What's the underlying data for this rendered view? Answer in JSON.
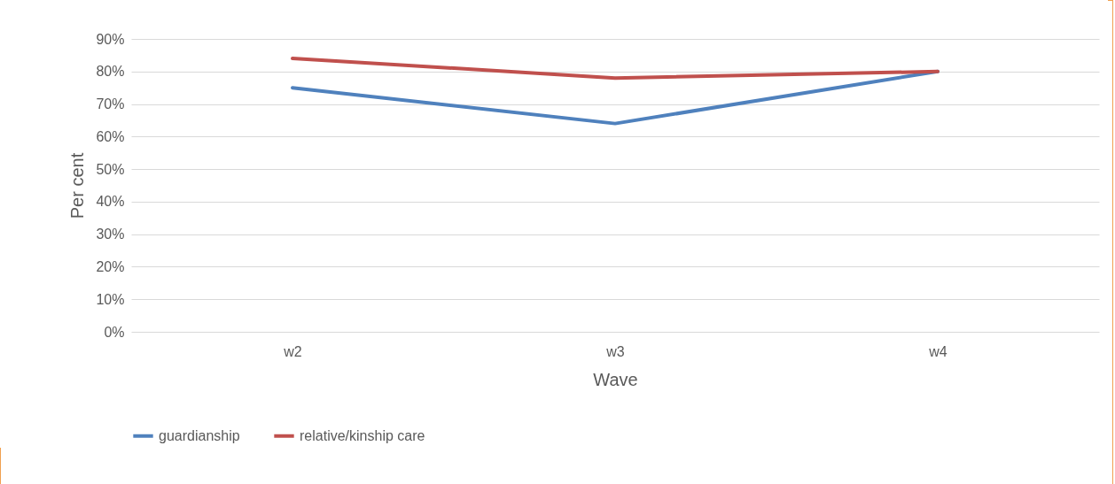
{
  "chart_data": {
    "type": "line",
    "xlabel": "Wave",
    "ylabel": "Per cent",
    "categories": [
      "w2",
      "w3",
      "w4"
    ],
    "series": [
      {
        "name": "guardianship",
        "color": "#4f81bd",
        "values": [
          75,
          64,
          80
        ]
      },
      {
        "name": "relative/kinship care",
        "color": "#c0504d",
        "values": [
          84,
          78,
          80
        ]
      }
    ],
    "ylim": [
      0,
      90
    ],
    "yticks": [
      {
        "value": 0,
        "label": "0%"
      },
      {
        "value": 10,
        "label": "10%"
      },
      {
        "value": 20,
        "label": "20%"
      },
      {
        "value": 30,
        "label": "30%"
      },
      {
        "value": 40,
        "label": "40%"
      },
      {
        "value": 50,
        "label": "50%"
      },
      {
        "value": 60,
        "label": "60%"
      },
      {
        "value": 70,
        "label": "70%"
      },
      {
        "value": 80,
        "label": "80%"
      },
      {
        "value": 90,
        "label": "90%"
      }
    ],
    "grid": "y",
    "legend": "bottom",
    "marker": "none",
    "line_style": "solid"
  }
}
